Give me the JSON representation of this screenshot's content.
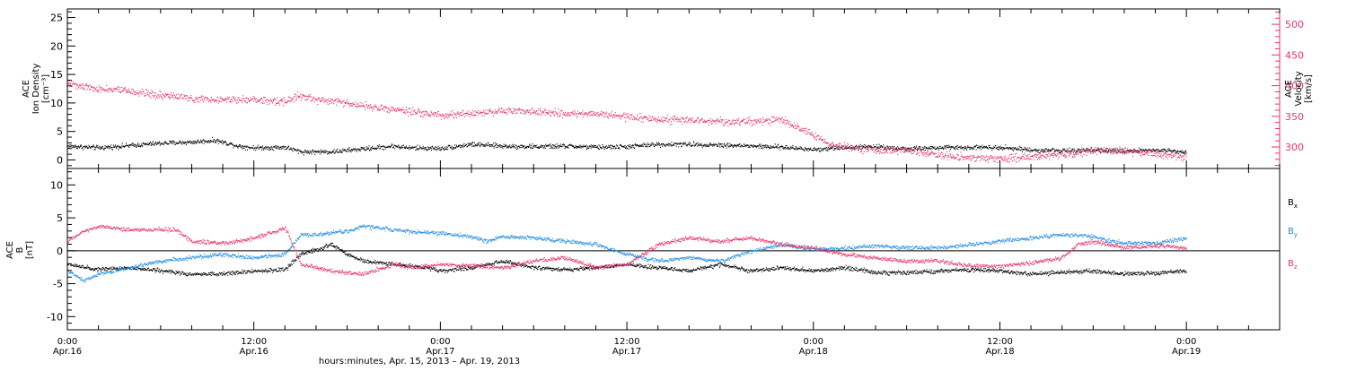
{
  "colors": {
    "black": "#000000",
    "pink": "#e8336b",
    "blue": "#1e8ce6"
  },
  "xaxis": {
    "ticks": [
      {
        "t": 0,
        "line1": "0:00",
        "line2": "Apr.16"
      },
      {
        "t": 12,
        "line1": "12:00",
        "line2": "Apr.16"
      },
      {
        "t": 24,
        "line1": "0:00",
        "line2": "Apr.17"
      },
      {
        "t": 36,
        "line1": "12:00",
        "line2": "Apr.17"
      },
      {
        "t": 48,
        "line1": "0:00",
        "line2": "Apr.18"
      },
      {
        "t": 60,
        "line1": "12:00",
        "line2": "Apr.18"
      },
      {
        "t": 72,
        "line1": "0:00",
        "line2": "Apr.19"
      }
    ],
    "caption": "hours:minutes, Apr. 15, 2013 – Apr. 19, 2013"
  },
  "chart_data": [
    {
      "type": "scatter",
      "panel": "top",
      "xlim": [
        0,
        78
      ],
      "ylim": [
        -1.5,
        26.5
      ],
      "y2lim": [
        265,
        525
      ],
      "yticks": [
        0,
        5,
        10,
        15,
        20,
        25
      ],
      "y2ticks": [
        300,
        350,
        400,
        450,
        500
      ],
      "ylabel": [
        "ACE",
        "Ion Density",
        "[cm⁻³]"
      ],
      "y2label": [
        "ACE",
        "Velocity",
        "[km/s]"
      ],
      "series": [
        {
          "axis": "left",
          "color_key": "black",
          "noise": 0.4,
          "points": [
            [
              0,
              2.5
            ],
            [
              2,
              2.2
            ],
            [
              4,
              2.6
            ],
            [
              6,
              3
            ],
            [
              8,
              3.2
            ],
            [
              9.5,
              3.5
            ],
            [
              11,
              2.5
            ],
            [
              12,
              2.2
            ],
            [
              14,
              2.3
            ],
            [
              15,
              1.5
            ],
            [
              17,
              1.5
            ],
            [
              19,
              2
            ],
            [
              21,
              2.5
            ],
            [
              22,
              2.2
            ],
            [
              24,
              2.1
            ],
            [
              26,
              2.8
            ],
            [
              28,
              2.5
            ],
            [
              30,
              2.4
            ],
            [
              32,
              2.5
            ],
            [
              34,
              2.3
            ],
            [
              36,
              2.4
            ],
            [
              38,
              2.8
            ],
            [
              40,
              2.8
            ],
            [
              42,
              2.7
            ],
            [
              44,
              2.5
            ],
            [
              46,
              2.3
            ],
            [
              48,
              1.9
            ],
            [
              50,
              2.3
            ],
            [
              52,
              2.4
            ],
            [
              54,
              2
            ],
            [
              56,
              2.2
            ],
            [
              58,
              2.3
            ],
            [
              60,
              2.3
            ],
            [
              62,
              1.8
            ],
            [
              64,
              1.7
            ],
            [
              66,
              1.7
            ],
            [
              68,
              1.7
            ],
            [
              70,
              1.8
            ],
            [
              72,
              1.5
            ]
          ]
        },
        {
          "axis": "right",
          "color_key": "pink",
          "noise": 6,
          "points": [
            [
              0,
              405
            ],
            [
              1,
              400
            ],
            [
              2,
              395
            ],
            [
              4,
              392
            ],
            [
              6,
              385
            ],
            [
              8,
              380
            ],
            [
              10,
              378
            ],
            [
              12,
              378
            ],
            [
              14,
              375
            ],
            [
              15,
              385
            ],
            [
              16,
              378
            ],
            [
              18,
              372
            ],
            [
              20,
              365
            ],
            [
              22,
              358
            ],
            [
              24,
              352
            ],
            [
              26,
              355
            ],
            [
              28,
              360
            ],
            [
              30,
              358
            ],
            [
              32,
              355
            ],
            [
              34,
              355
            ],
            [
              36,
              350
            ],
            [
              38,
              345
            ],
            [
              40,
              345
            ],
            [
              42,
              342
            ],
            [
              44,
              342
            ],
            [
              46,
              345
            ],
            [
              47,
              332
            ],
            [
              48,
              320
            ],
            [
              49,
              305
            ],
            [
              50,
              300
            ],
            [
              52,
              296
            ],
            [
              54,
              295
            ],
            [
              56,
              288
            ],
            [
              58,
              283
            ],
            [
              60,
              282
            ],
            [
              62,
              284
            ],
            [
              63,
              286
            ],
            [
              64,
              288
            ],
            [
              66,
              296
            ],
            [
              68,
              294
            ],
            [
              70,
              290
            ],
            [
              72,
              283
            ]
          ]
        }
      ]
    },
    {
      "type": "scatter",
      "panel": "bottom",
      "xlim": [
        0,
        78
      ],
      "ylim": [
        -12,
        12.5
      ],
      "yticks": [
        -10,
        -5,
        0,
        5,
        10
      ],
      "ylabel": [
        "ACE",
        "B",
        "[nT]"
      ],
      "legend": [
        {
          "name": "B",
          "sub": "x",
          "color_key": "black"
        },
        {
          "name": "B",
          "sub": "y",
          "color_key": "blue"
        },
        {
          "name": "B",
          "sub": "z",
          "color_key": "pink"
        }
      ],
      "series": [
        {
          "name": "Bx",
          "color_key": "black",
          "noise": 0.3,
          "points": [
            [
              0,
              -2
            ],
            [
              2,
              -2.8
            ],
            [
              4,
              -2.5
            ],
            [
              6,
              -3
            ],
            [
              8,
              -3.5
            ],
            [
              10,
              -3.5
            ],
            [
              12,
              -3
            ],
            [
              14,
              -2.8
            ],
            [
              15,
              -0.5
            ],
            [
              17,
              1
            ],
            [
              18,
              -0.5
            ],
            [
              19,
              -1.5
            ],
            [
              21,
              -2
            ],
            [
              23,
              -2.5
            ],
            [
              24,
              -3
            ],
            [
              26,
              -2.5
            ],
            [
              28,
              -1.5
            ],
            [
              30,
              -2.5
            ],
            [
              32,
              -2.8
            ],
            [
              34,
              -2.5
            ],
            [
              36,
              -2
            ],
            [
              38,
              -2.5
            ],
            [
              40,
              -3
            ],
            [
              42,
              -2
            ],
            [
              44,
              -3
            ],
            [
              46,
              -2.5
            ],
            [
              48,
              -3
            ],
            [
              50,
              -2.5
            ],
            [
              52,
              -3.2
            ],
            [
              54,
              -3.3
            ],
            [
              56,
              -3
            ],
            [
              58,
              -2.8
            ],
            [
              60,
              -3
            ],
            [
              62,
              -3.5
            ],
            [
              64,
              -3.2
            ],
            [
              66,
              -3
            ],
            [
              68,
              -3.5
            ],
            [
              70,
              -3.3
            ],
            [
              72,
              -3
            ]
          ]
        },
        {
          "name": "By",
          "color_key": "blue",
          "noise": 0.3,
          "points": [
            [
              0,
              -3
            ],
            [
              1,
              -4.5
            ],
            [
              2,
              -3.5
            ],
            [
              4,
              -2.5
            ],
            [
              6,
              -1.5
            ],
            [
              8,
              -1
            ],
            [
              10,
              -0.5
            ],
            [
              12,
              -1
            ],
            [
              14,
              -0.5
            ],
            [
              15,
              2.5
            ],
            [
              16,
              2.5
            ],
            [
              18,
              3
            ],
            [
              19,
              3.8
            ],
            [
              20,
              3.5
            ],
            [
              22,
              3
            ],
            [
              24,
              2.7
            ],
            [
              26,
              2.2
            ],
            [
              27,
              1.5
            ],
            [
              28,
              2.2
            ],
            [
              30,
              2
            ],
            [
              32,
              1.5
            ],
            [
              34,
              1
            ],
            [
              36,
              -0.5
            ],
            [
              38,
              -1.5
            ],
            [
              40,
              -1
            ],
            [
              42,
              -1.5
            ],
            [
              44,
              0
            ],
            [
              46,
              1
            ],
            [
              48,
              0.2
            ],
            [
              50,
              0.5
            ],
            [
              52,
              0.8
            ],
            [
              54,
              0.5
            ],
            [
              56,
              0.5
            ],
            [
              58,
              1
            ],
            [
              60,
              1.5
            ],
            [
              62,
              2
            ],
            [
              64,
              2.5
            ],
            [
              66,
              2.3
            ],
            [
              67,
              1.5
            ],
            [
              68,
              1.2
            ],
            [
              70,
              1.2
            ],
            [
              72,
              2
            ]
          ]
        },
        {
          "name": "Bz",
          "color_key": "pink",
          "noise": 0.3,
          "points": [
            [
              0,
              1.5
            ],
            [
              1,
              3
            ],
            [
              2,
              3.8
            ],
            [
              4,
              3.2
            ],
            [
              6,
              3.3
            ],
            [
              7,
              3.2
            ],
            [
              8,
              1.5
            ],
            [
              10,
              1.2
            ],
            [
              12,
              2
            ],
            [
              14,
              3.5
            ],
            [
              15,
              -2
            ],
            [
              17,
              -3
            ],
            [
              19,
              -3.5
            ],
            [
              21,
              -2
            ],
            [
              22,
              -2.5
            ],
            [
              24,
              -2
            ],
            [
              26,
              -2.2
            ],
            [
              28,
              -2.5
            ],
            [
              30,
              -1.5
            ],
            [
              32,
              -1
            ],
            [
              34,
              -2.5
            ],
            [
              36,
              -2
            ],
            [
              38,
              1
            ],
            [
              40,
              2
            ],
            [
              42,
              1.5
            ],
            [
              44,
              2
            ],
            [
              46,
              1
            ],
            [
              48,
              0.5
            ],
            [
              50,
              -0.5
            ],
            [
              52,
              -1
            ],
            [
              54,
              -1.5
            ],
            [
              56,
              -1.5
            ],
            [
              58,
              -2.2
            ],
            [
              60,
              -2.3
            ],
            [
              62,
              -1.8
            ],
            [
              64,
              -1
            ],
            [
              65,
              1
            ],
            [
              66,
              1.5
            ],
            [
              68,
              0.5
            ],
            [
              70,
              0.8
            ],
            [
              72,
              0.5
            ]
          ]
        }
      ]
    }
  ]
}
